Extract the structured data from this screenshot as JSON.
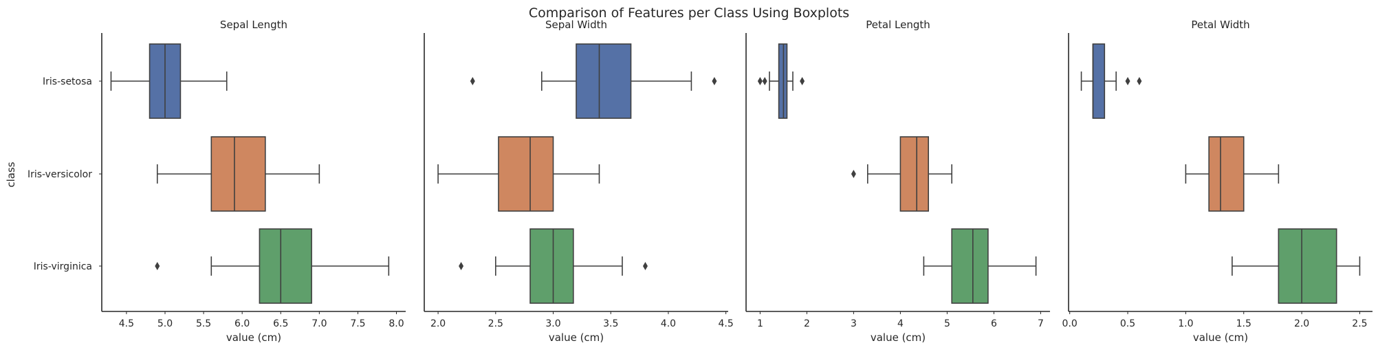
{
  "chart_data": {
    "type": "boxplot",
    "title": "Comparison of Features per Class Using Boxplots",
    "ylabel": "class",
    "categories": [
      "Iris-setosa",
      "Iris-versicolor",
      "Iris-virginica"
    ],
    "colors": [
      "#5571a6",
      "#cf8760",
      "#5f9f6b"
    ],
    "panels": [
      {
        "title": "Sepal Length",
        "xlabel": "value (cm)",
        "xlim": [
          4.18,
          8.12
        ],
        "ticks": [
          4.5,
          5.0,
          5.5,
          6.0,
          6.5,
          7.0,
          7.5,
          8.0
        ],
        "tick_labels": [
          "4.5",
          "5.0",
          "5.5",
          "6.0",
          "6.5",
          "7.0",
          "7.5",
          "8.0"
        ],
        "boxes": [
          {
            "whislo": 4.3,
            "q1": 4.8,
            "med": 5.0,
            "q3": 5.2,
            "whishi": 5.8,
            "fliers": []
          },
          {
            "whislo": 4.9,
            "q1": 5.6,
            "med": 5.9,
            "q3": 6.3,
            "whishi": 7.0,
            "fliers": []
          },
          {
            "whislo": 5.6,
            "q1": 6.225,
            "med": 6.5,
            "q3": 6.9,
            "whishi": 7.9,
            "fliers": [
              4.9
            ]
          }
        ]
      },
      {
        "title": "Sepal Width",
        "xlabel": "value (cm)",
        "xlim": [
          1.88,
          4.52
        ],
        "ticks": [
          2.0,
          2.5,
          3.0,
          3.5,
          4.0,
          4.5
        ],
        "tick_labels": [
          "2.0",
          "2.5",
          "3.0",
          "3.5",
          "4.0",
          "4.5"
        ],
        "boxes": [
          {
            "whislo": 2.9,
            "q1": 3.2,
            "med": 3.4,
            "q3": 3.675,
            "whishi": 4.2,
            "fliers": [
              2.3,
              4.4
            ]
          },
          {
            "whislo": 2.0,
            "q1": 2.525,
            "med": 2.8,
            "q3": 3.0,
            "whishi": 3.4,
            "fliers": []
          },
          {
            "whislo": 2.5,
            "q1": 2.8,
            "med": 3.0,
            "q3": 3.175,
            "whishi": 3.6,
            "fliers": [
              2.2,
              3.8
            ]
          }
        ]
      },
      {
        "title": "Petal Length",
        "xlabel": "value (cm)",
        "xlim": [
          0.7,
          7.2
        ],
        "ticks": [
          1,
          2,
          3,
          4,
          5,
          6,
          7
        ],
        "tick_labels": [
          "1",
          "2",
          "3",
          "4",
          "5",
          "6",
          "7"
        ],
        "boxes": [
          {
            "whislo": 1.2,
            "q1": 1.4,
            "med": 1.5,
            "q3": 1.575,
            "whishi": 1.7,
            "fliers": [
              1.0,
              1.1,
              1.9
            ]
          },
          {
            "whislo": 3.3,
            "q1": 4.0,
            "med": 4.35,
            "q3": 4.6,
            "whishi": 5.1,
            "fliers": [
              3.0
            ]
          },
          {
            "whislo": 4.5,
            "q1": 5.1,
            "med": 5.55,
            "q3": 5.875,
            "whishi": 6.9,
            "fliers": []
          }
        ]
      },
      {
        "title": "Petal Width",
        "xlabel": "value (cm)",
        "xlim": [
          -0.01,
          2.61
        ],
        "ticks": [
          0.0,
          0.5,
          1.0,
          1.5,
          2.0,
          2.5
        ],
        "tick_labels": [
          "0.0",
          "0.5",
          "1.0",
          "1.5",
          "2.0",
          "2.5"
        ],
        "boxes": [
          {
            "whislo": 0.1,
            "q1": 0.2,
            "med": 0.2,
            "q3": 0.3,
            "whishi": 0.4,
            "fliers": [
              0.5,
              0.6
            ]
          },
          {
            "whislo": 1.0,
            "q1": 1.2,
            "med": 1.3,
            "q3": 1.5,
            "whishi": 1.8,
            "fliers": []
          },
          {
            "whislo": 1.4,
            "q1": 1.8,
            "med": 2.0,
            "q3": 2.3,
            "whishi": 2.5,
            "fliers": []
          }
        ]
      }
    ]
  }
}
